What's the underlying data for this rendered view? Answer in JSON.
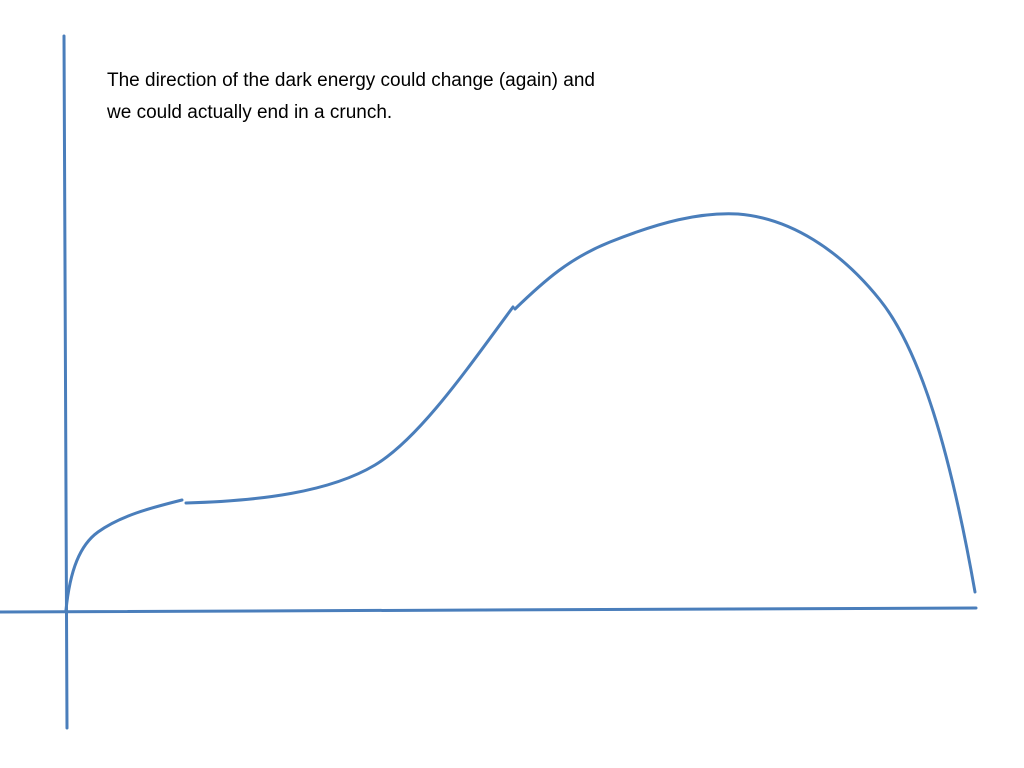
{
  "slide": {
    "text_lines": [
      "The direction of the dark energy could change (again) and",
      "we could actually end in a crunch."
    ]
  }
}
